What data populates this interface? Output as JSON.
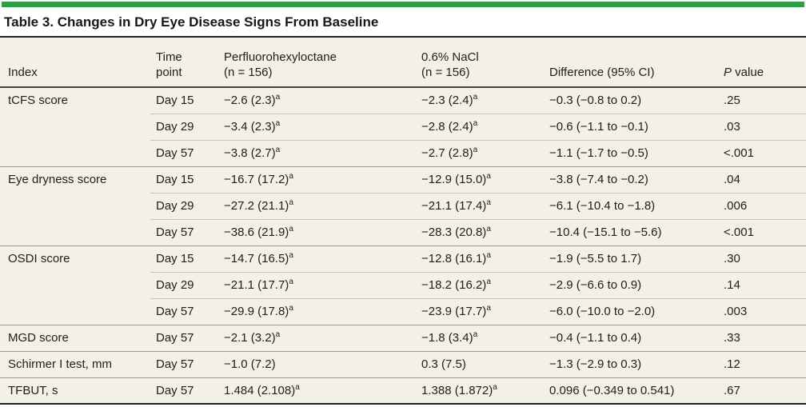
{
  "colors": {
    "accent_green": "#2f9e44",
    "table_bg": "#f3f0e6",
    "text": "#1e1e1b"
  },
  "table": {
    "title": "Table 3. Changes in Dry Eye Disease Signs From Baseline",
    "header": {
      "index": "Index",
      "time_line1": "Time",
      "time_line2": "point",
      "pfho_line1": "Perfluorohexyloctane",
      "pfho_line2": "(n = 156)",
      "nacl_line1": "0.6% NaCl",
      "nacl_line2": "(n = 156)",
      "diff": "Difference (95% CI)",
      "p_italic": "P",
      "p_rest": " value"
    },
    "rows": [
      {
        "index": "tCFS score",
        "time": "Day 15",
        "pfho": "−2.6 (2.3)",
        "pfho_sup": "a",
        "nacl": "−2.3 (2.4)",
        "nacl_sup": "a",
        "diff": "−0.3 (−0.8 to 0.2)",
        "p": ".25",
        "group_start": true
      },
      {
        "index": "",
        "time": "Day 29",
        "pfho": "−3.4 (2.3)",
        "pfho_sup": "a",
        "nacl": "−2.8 (2.4)",
        "nacl_sup": "a",
        "diff": "−0.6 (−1.1 to −0.1)",
        "p": ".03",
        "group_start": false
      },
      {
        "index": "",
        "time": "Day 57",
        "pfho": "−3.8 (2.7)",
        "pfho_sup": "a",
        "nacl": "−2.7 (2.8)",
        "nacl_sup": "a",
        "diff": "−1.1 (−1.7 to −0.5)",
        "p": "<.001",
        "group_start": false
      },
      {
        "index": "Eye dryness score",
        "time": "Day 15",
        "pfho": "−16.7 (17.2)",
        "pfho_sup": "a",
        "nacl": "−12.9 (15.0)",
        "nacl_sup": "a",
        "diff": "−3.8 (−7.4 to −0.2)",
        "p": ".04",
        "group_start": true
      },
      {
        "index": "",
        "time": "Day 29",
        "pfho": "−27.2 (21.1)",
        "pfho_sup": "a",
        "nacl": "−21.1 (17.4)",
        "nacl_sup": "a",
        "diff": "−6.1 (−10.4 to −1.8)",
        "p": ".006",
        "group_start": false
      },
      {
        "index": "",
        "time": "Day 57",
        "pfho": "−38.6 (21.9)",
        "pfho_sup": "a",
        "nacl": "−28.3 (20.8)",
        "nacl_sup": "a",
        "diff": "−10.4 (−15.1 to −5.6)",
        "p": "<.001",
        "group_start": false
      },
      {
        "index": "OSDI score",
        "time": "Day 15",
        "pfho": "−14.7 (16.5)",
        "pfho_sup": "a",
        "nacl": "−12.8 (16.1)",
        "nacl_sup": "a",
        "diff": "−1.9 (−5.5 to 1.7)",
        "p": ".30",
        "group_start": true
      },
      {
        "index": "",
        "time": "Day 29",
        "pfho": "−21.1 (17.7)",
        "pfho_sup": "a",
        "nacl": "−18.2 (16.2)",
        "nacl_sup": "a",
        "diff": "−2.9 (−6.6 to 0.9)",
        "p": ".14",
        "group_start": false
      },
      {
        "index": "",
        "time": "Day 57",
        "pfho": "−29.9 (17.8)",
        "pfho_sup": "a",
        "nacl": "−23.9 (17.7)",
        "nacl_sup": "a",
        "diff": "−6.0 (−10.0 to −2.0)",
        "p": ".003",
        "group_start": false
      },
      {
        "index": "MGD score",
        "time": "Day 57",
        "pfho": "−2.1 (3.2)",
        "pfho_sup": "a",
        "nacl": "−1.8 (3.4)",
        "nacl_sup": "a",
        "diff": "−0.4 (−1.1 to 0.4)",
        "p": ".33",
        "group_start": true
      },
      {
        "index": "Schirmer I test, mm",
        "time": "Day 57",
        "pfho": "−1.0 (7.2)",
        "pfho_sup": "",
        "nacl": "0.3 (7.5)",
        "nacl_sup": "",
        "diff": "−1.3 (−2.9 to 0.3)",
        "p": ".12",
        "group_start": true
      },
      {
        "index": "TFBUT, s",
        "time": "Day 57",
        "pfho": "1.484 (2.108)",
        "pfho_sup": "a",
        "nacl": "1.388 (1.872)",
        "nacl_sup": "a",
        "diff": "0.096 (−0.349 to 0.541)",
        "p": ".67",
        "group_start": true
      }
    ]
  }
}
